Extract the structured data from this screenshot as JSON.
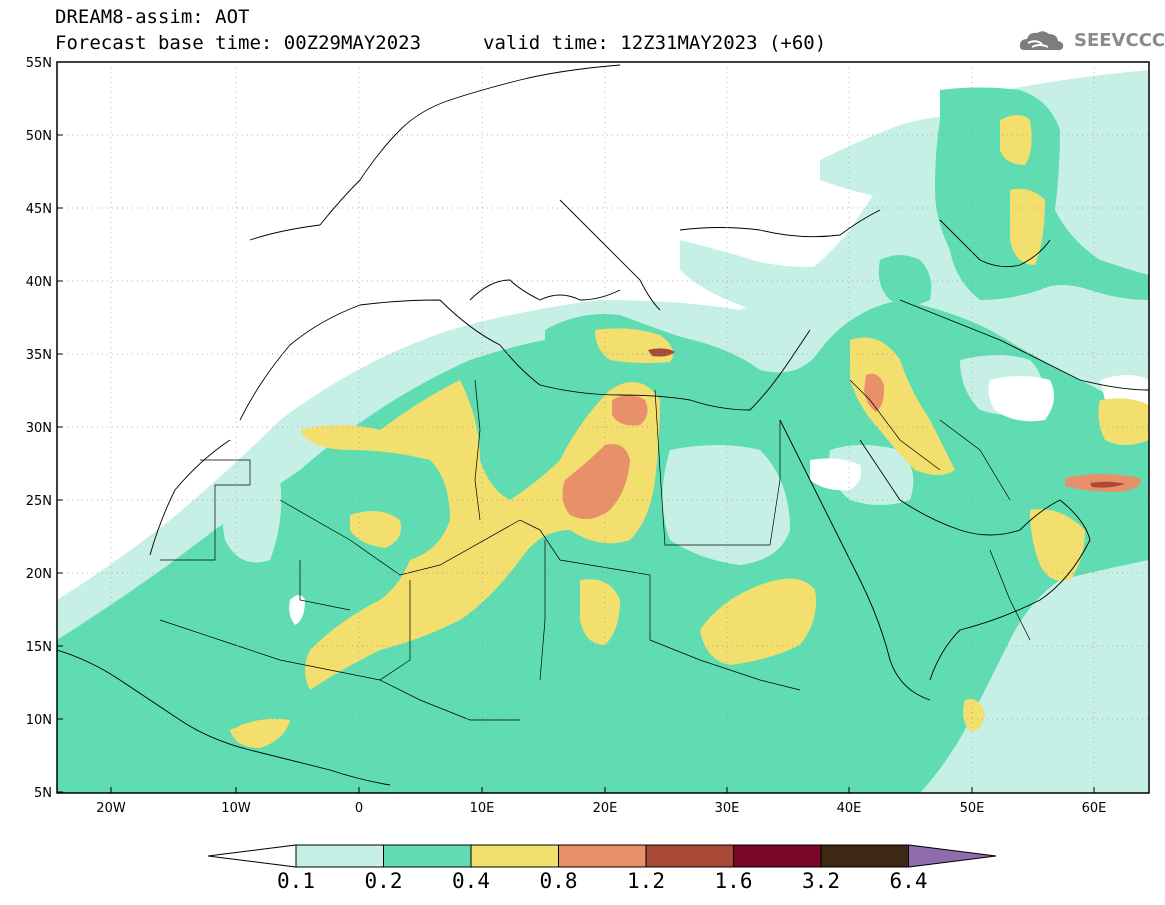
{
  "header": {
    "title": "DREAM8-assim: AOT",
    "base_time": "Forecast base time: 00Z29MAY2023",
    "valid_time": "valid time: 12Z31MAY2023 (+60)"
  },
  "logo": {
    "icon": "cloud-icon",
    "text": "SEEVCCC"
  },
  "map": {
    "lat_labels": [
      "55N",
      "50N",
      "45N",
      "40N",
      "35N",
      "30N",
      "25N",
      "20N",
      "15N",
      "10N",
      "5N"
    ],
    "lon_labels": [
      "20W",
      "10W",
      "0",
      "10E",
      "20E",
      "30E",
      "40E",
      "50E",
      "60E"
    ]
  },
  "colorbar": {
    "levels": [
      "0.1",
      "0.2",
      "0.4",
      "0.8",
      "1.2",
      "1.6",
      "3.2",
      "6.4"
    ],
    "colors": [
      "#ffffff",
      "#c6f0e6",
      "#5fdcb2",
      "#f2df6e",
      "#e8906a",
      "#a84a36",
      "#7a0628",
      "#3d2814",
      "#8e6bab"
    ]
  }
}
